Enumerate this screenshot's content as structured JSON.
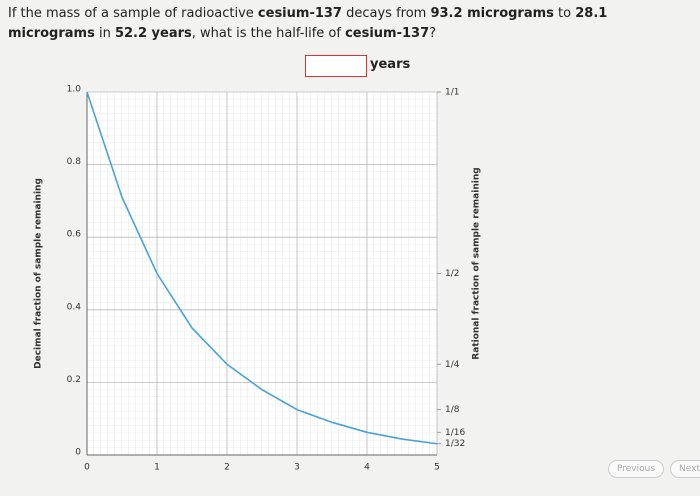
{
  "question": [
    {
      "text": "If the mass of a sample of radioactive ",
      "bold": false
    },
    {
      "text": "cesium-137",
      "bold": true
    },
    {
      "text": " decays from ",
      "bold": false
    },
    {
      "text": "93.2 micrograms",
      "bold": true
    },
    {
      "text": " to ",
      "bold": false
    },
    {
      "text": "28.1 micrograms",
      "bold": true
    },
    {
      "text": " in ",
      "bold": false
    },
    {
      "text": "52.2 years",
      "bold": true
    },
    {
      "text": ", what is the half-life of ",
      "bold": false
    },
    {
      "text": "cesium-137",
      "bold": true
    },
    {
      "text": "?",
      "bold": false
    }
  ],
  "answer": {
    "unit": "years"
  },
  "navigation": {
    "previous": "Previous",
    "next": "Next"
  },
  "chart_data": {
    "type": "line",
    "y_label": "Decimal fraction of sample remaining",
    "y2_label": "Rational fraction of sample remaining",
    "x": [
      0,
      0.5,
      1,
      1.5,
      2,
      2.5,
      3,
      3.5,
      4,
      4.5,
      5
    ],
    "series": [
      {
        "color": "#4aa3d8",
        "values": [
          1,
          0.71,
          0.5,
          0.35,
          0.25,
          0.18,
          0.125,
          0.09,
          0.0625,
          0.044,
          0.031
        ]
      }
    ],
    "xlim": [
      0,
      5
    ],
    "ylim": [
      0,
      1
    ],
    "xticks": [
      0,
      1,
      2,
      3,
      4,
      5
    ],
    "yticks": [
      0,
      0.2,
      0.4,
      0.6,
      0.8,
      {
        "value": 1,
        "label": "1.0"
      }
    ],
    "y2lim": [
      0,
      1
    ],
    "y2ticks": [
      {
        "value": 1,
        "label": "1/1"
      },
      {
        "value": 0.5,
        "label": "1/2"
      },
      {
        "value": 0.25,
        "label": "1/4"
      },
      {
        "value": 0.125,
        "label": "1/8"
      },
      {
        "value": 0.0625,
        "label": "1/16"
      },
      {
        "value": 0.03125,
        "label": "1/32"
      }
    ],
    "grid": true
  }
}
